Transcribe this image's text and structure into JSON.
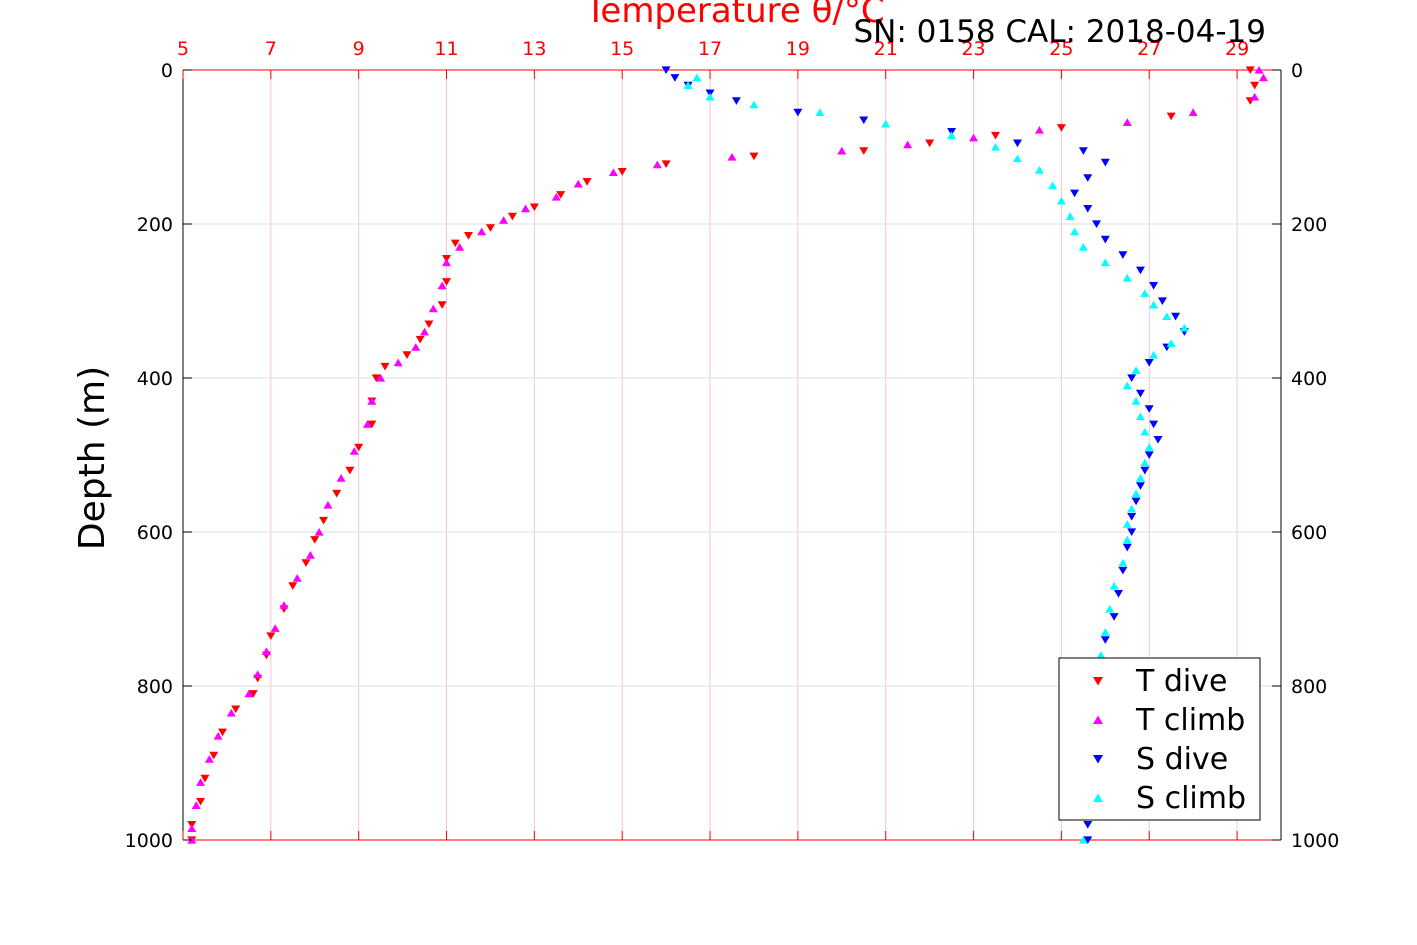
{
  "chart_data": {
    "type": "scatter",
    "title": "Temperature θ/°C",
    "subtitle": "SN: 0158  CAL: 2018-04-19",
    "xlabel": "Temperature θ/°C",
    "ylabel": "Depth (m)",
    "xlim": [
      5,
      30
    ],
    "ylim": [
      0,
      1000
    ],
    "y_inverted": true,
    "xticks": [
      "5",
      "7",
      "9",
      "11",
      "13",
      "15",
      "17",
      "19",
      "21",
      "23",
      "25",
      "27",
      "29"
    ],
    "yticks": [
      "0",
      "200",
      "400",
      "600",
      "800",
      "1000"
    ],
    "grid": true,
    "legend_position": "bottom-right",
    "colors": {
      "t_dive": "#ff0000",
      "t_climb": "#ff00ff",
      "s_dive": "#0000ff",
      "s_climb": "#00ffff",
      "axis_top": "#ff0000",
      "grid_vertical": "#f4c6cc",
      "grid_horizontal": "#dddddd"
    },
    "series": [
      {
        "name": "T dive",
        "marker": "triangle-down",
        "color": "#ff0000",
        "points": [
          [
            29.3,
            0
          ],
          [
            29.4,
            20
          ],
          [
            29.3,
            40
          ],
          [
            27.5,
            60
          ],
          [
            25.0,
            75
          ],
          [
            23.5,
            85
          ],
          [
            22.0,
            95
          ],
          [
            20.5,
            105
          ],
          [
            18.0,
            112
          ],
          [
            16.0,
            122
          ],
          [
            15.0,
            132
          ],
          [
            14.2,
            145
          ],
          [
            13.6,
            162
          ],
          [
            13.0,
            178
          ],
          [
            12.5,
            190
          ],
          [
            12.0,
            205
          ],
          [
            11.5,
            215
          ],
          [
            11.2,
            225
          ],
          [
            11.0,
            245
          ],
          [
            11.0,
            275
          ],
          [
            10.9,
            305
          ],
          [
            10.6,
            330
          ],
          [
            10.4,
            350
          ],
          [
            10.1,
            370
          ],
          [
            9.6,
            385
          ],
          [
            9.4,
            400
          ],
          [
            9.3,
            430
          ],
          [
            9.3,
            460
          ],
          [
            9.0,
            490
          ],
          [
            8.8,
            520
          ],
          [
            8.5,
            550
          ],
          [
            8.2,
            585
          ],
          [
            8.0,
            610
          ],
          [
            7.8,
            640
          ],
          [
            7.5,
            670
          ],
          [
            7.3,
            700
          ],
          [
            7.0,
            735
          ],
          [
            6.9,
            760
          ],
          [
            6.7,
            790
          ],
          [
            6.6,
            810
          ],
          [
            6.2,
            830
          ],
          [
            5.9,
            860
          ],
          [
            5.7,
            890
          ],
          [
            5.5,
            920
          ],
          [
            5.4,
            950
          ],
          [
            5.2,
            980
          ],
          [
            5.2,
            1000
          ]
        ]
      },
      {
        "name": "T climb",
        "marker": "triangle-up",
        "color": "#ff00ff",
        "points": [
          [
            29.5,
            0
          ],
          [
            29.6,
            10
          ],
          [
            29.4,
            35
          ],
          [
            28.0,
            55
          ],
          [
            26.5,
            68
          ],
          [
            24.5,
            78
          ],
          [
            23.0,
            88
          ],
          [
            21.5,
            97
          ],
          [
            20.0,
            105
          ],
          [
            17.5,
            113
          ],
          [
            15.8,
            123
          ],
          [
            14.8,
            133
          ],
          [
            14.0,
            148
          ],
          [
            13.5,
            165
          ],
          [
            12.8,
            180
          ],
          [
            12.3,
            195
          ],
          [
            11.8,
            210
          ],
          [
            11.3,
            230
          ],
          [
            11.0,
            250
          ],
          [
            10.9,
            280
          ],
          [
            10.7,
            310
          ],
          [
            10.5,
            340
          ],
          [
            10.3,
            360
          ],
          [
            9.9,
            380
          ],
          [
            9.5,
            400
          ],
          [
            9.3,
            430
          ],
          [
            9.2,
            460
          ],
          [
            8.9,
            495
          ],
          [
            8.6,
            530
          ],
          [
            8.3,
            565
          ],
          [
            8.1,
            600
          ],
          [
            7.9,
            630
          ],
          [
            7.6,
            660
          ],
          [
            7.3,
            695
          ],
          [
            7.1,
            725
          ],
          [
            6.9,
            755
          ],
          [
            6.7,
            785
          ],
          [
            6.5,
            810
          ],
          [
            6.1,
            835
          ],
          [
            5.8,
            865
          ],
          [
            5.6,
            895
          ],
          [
            5.4,
            925
          ],
          [
            5.3,
            955
          ],
          [
            5.2,
            985
          ],
          [
            5.2,
            1000
          ]
        ]
      },
      {
        "name": "S dive",
        "marker": "triangle-down",
        "color": "#0000ff",
        "points": [
          [
            16.0,
            0
          ],
          [
            16.2,
            10
          ],
          [
            16.5,
            20
          ],
          [
            17.0,
            30
          ],
          [
            17.6,
            40
          ],
          [
            19.0,
            55
          ],
          [
            20.5,
            65
          ],
          [
            22.5,
            80
          ],
          [
            24.0,
            95
          ],
          [
            25.5,
            105
          ],
          [
            26.0,
            120
          ],
          [
            25.6,
            140
          ],
          [
            25.3,
            160
          ],
          [
            25.6,
            180
          ],
          [
            25.8,
            200
          ],
          [
            26.0,
            220
          ],
          [
            26.4,
            240
          ],
          [
            26.8,
            260
          ],
          [
            27.1,
            280
          ],
          [
            27.3,
            300
          ],
          [
            27.6,
            320
          ],
          [
            27.8,
            340
          ],
          [
            27.4,
            360
          ],
          [
            27.0,
            380
          ],
          [
            26.6,
            400
          ],
          [
            26.8,
            420
          ],
          [
            27.0,
            440
          ],
          [
            27.1,
            460
          ],
          [
            27.2,
            480
          ],
          [
            27.0,
            500
          ],
          [
            26.9,
            520
          ],
          [
            26.8,
            540
          ],
          [
            26.7,
            560
          ],
          [
            26.6,
            580
          ],
          [
            26.6,
            600
          ],
          [
            26.5,
            620
          ],
          [
            26.4,
            650
          ],
          [
            26.3,
            680
          ],
          [
            26.2,
            710
          ],
          [
            26.0,
            740
          ],
          [
            25.9,
            770
          ],
          [
            25.9,
            800
          ],
          [
            25.8,
            830
          ],
          [
            25.7,
            860
          ],
          [
            25.6,
            890
          ],
          [
            25.6,
            920
          ],
          [
            25.5,
            950
          ],
          [
            25.6,
            980
          ],
          [
            25.6,
            1000
          ]
        ]
      },
      {
        "name": "S climb",
        "marker": "triangle-up",
        "color": "#00ffff",
        "points": [
          [
            16.7,
            10
          ],
          [
            16.5,
            20
          ],
          [
            17.0,
            35
          ],
          [
            18.0,
            45
          ],
          [
            19.5,
            55
          ],
          [
            21.0,
            70
          ],
          [
            22.5,
            85
          ],
          [
            23.5,
            100
          ],
          [
            24.0,
            115
          ],
          [
            24.5,
            130
          ],
          [
            24.8,
            150
          ],
          [
            25.0,
            170
          ],
          [
            25.2,
            190
          ],
          [
            25.3,
            210
          ],
          [
            25.5,
            230
          ],
          [
            26.0,
            250
          ],
          [
            26.5,
            270
          ],
          [
            26.9,
            290
          ],
          [
            27.1,
            305
          ],
          [
            27.4,
            320
          ],
          [
            27.8,
            335
          ],
          [
            27.5,
            355
          ],
          [
            27.1,
            370
          ],
          [
            26.7,
            390
          ],
          [
            26.5,
            410
          ],
          [
            26.7,
            430
          ],
          [
            26.8,
            450
          ],
          [
            26.9,
            470
          ],
          [
            27.0,
            490
          ],
          [
            26.9,
            510
          ],
          [
            26.8,
            530
          ],
          [
            26.7,
            550
          ],
          [
            26.6,
            570
          ],
          [
            26.5,
            590
          ],
          [
            26.5,
            610
          ],
          [
            26.4,
            640
          ],
          [
            26.2,
            670
          ],
          [
            26.1,
            700
          ],
          [
            26.0,
            730
          ],
          [
            25.9,
            760
          ],
          [
            25.8,
            790
          ],
          [
            25.8,
            820
          ],
          [
            25.7,
            850
          ],
          [
            25.6,
            880
          ],
          [
            25.5,
            910
          ],
          [
            25.4,
            940
          ],
          [
            25.4,
            970
          ],
          [
            25.5,
            1000
          ]
        ]
      }
    ]
  }
}
